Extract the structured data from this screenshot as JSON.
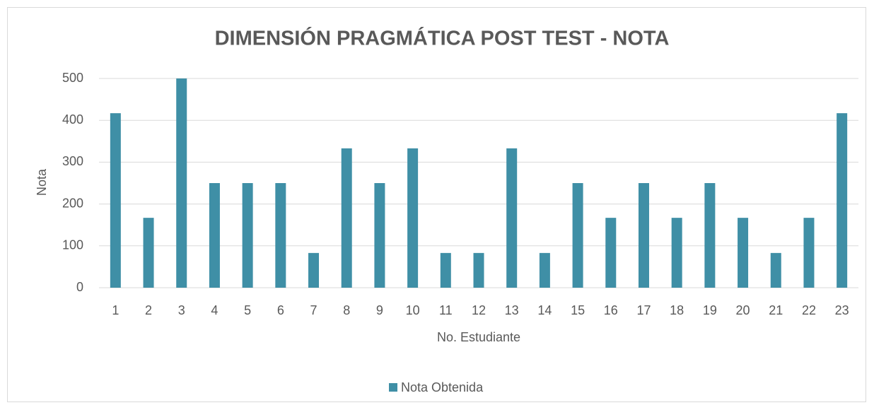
{
  "chart_data": {
    "type": "bar",
    "title": "DIMENSIÓN PRAGMÁTICA POST TEST - NOTA",
    "x_label": "No. Estudiante",
    "y_label": "Nota",
    "categories": [
      1,
      2,
      3,
      4,
      5,
      6,
      7,
      8,
      9,
      10,
      11,
      12,
      13,
      14,
      15,
      16,
      17,
      18,
      19,
      20,
      21,
      22,
      23
    ],
    "series": [
      {
        "name": "Nota Obtenida",
        "color": "#3f8fa6",
        "values": [
          417,
          167,
          500,
          250,
          250,
          250,
          83,
          333,
          250,
          333,
          83,
          83,
          333,
          83,
          250,
          167,
          250,
          167,
          250,
          167,
          83,
          167,
          417
        ]
      }
    ],
    "ylim": [
      0,
      500
    ],
    "yticks": [
      0,
      100,
      200,
      300,
      400,
      500
    ],
    "grid": true,
    "legend": "bottom"
  }
}
